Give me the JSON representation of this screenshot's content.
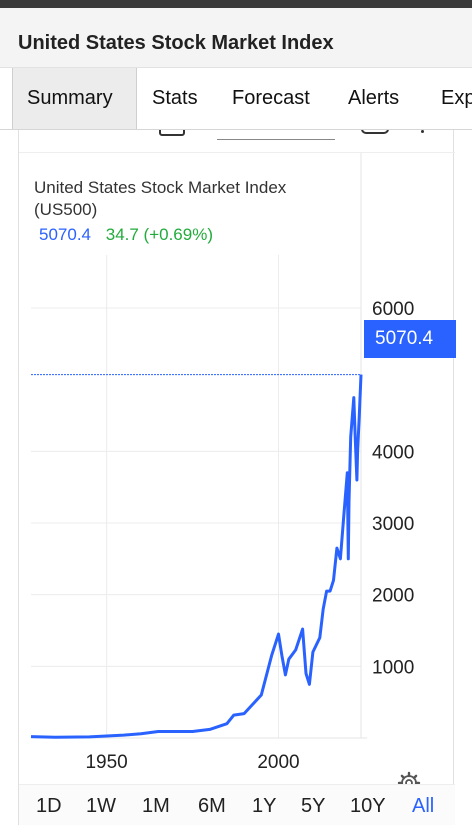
{
  "header": {
    "title": "United States Stock Market Index"
  },
  "tabs": [
    {
      "label": "Summary",
      "active": true
    },
    {
      "label": "Stats"
    },
    {
      "label": "Forecast"
    },
    {
      "label": "Alerts"
    },
    {
      "label": "Exp"
    }
  ],
  "chart_info": {
    "name": "United States Stock Market Index",
    "ticker": "(US500)",
    "last": "5070.4",
    "change": "34.7 (+0.69%)"
  },
  "price_tag": "5070.4",
  "colors": {
    "line": "#2962ff",
    "up": "#22ab3d",
    "tag": "#2962ff"
  },
  "icons": {
    "settings": "gear-icon"
  },
  "ranges": [
    {
      "label": "1D"
    },
    {
      "label": "1W"
    },
    {
      "label": "1M"
    },
    {
      "label": "6M"
    },
    {
      "label": "1Y"
    },
    {
      "label": "5Y"
    },
    {
      "label": "10Y"
    },
    {
      "label": "All",
      "active": true
    }
  ],
  "chart_data": {
    "type": "line",
    "title": "United States Stock Market Index (US500)",
    "xlabel": "",
    "ylabel": "",
    "x_ticks": [
      "1950",
      "2000"
    ],
    "y_ticks": [
      "1000",
      "2000",
      "3000",
      "4000",
      "6000"
    ],
    "ylim": [
      0,
      6600
    ],
    "xlim": [
      1928,
      2024
    ],
    "last_price_line": 5070.4,
    "grid": true,
    "series": [
      {
        "x": [
          1928,
          1935,
          1945,
          1955,
          1960,
          1965,
          1970,
          1975,
          1980,
          1985,
          1987,
          1990,
          1995,
          1998,
          2000,
          2001,
          2002,
          2003,
          2005,
          2007,
          2008,
          2009,
          2010,
          2012,
          2013,
          2014,
          2015,
          2016,
          2017,
          2018,
          2019,
          2020,
          2020.3,
          2020.5,
          2021,
          2021.9,
          2022.3,
          2022.8,
          2023,
          2023.5,
          2024
        ],
        "y": [
          20,
          10,
          15,
          40,
          60,
          90,
          90,
          90,
          120,
          200,
          320,
          340,
          600,
          1150,
          1450,
          1150,
          880,
          1100,
          1230,
          1520,
          900,
          750,
          1200,
          1400,
          1800,
          2050,
          2050,
          2200,
          2650,
          2500,
          3100,
          3700,
          2500,
          3300,
          4200,
          4750,
          4200,
          3600,
          4000,
          4500,
          5070.4
        ]
      }
    ]
  }
}
